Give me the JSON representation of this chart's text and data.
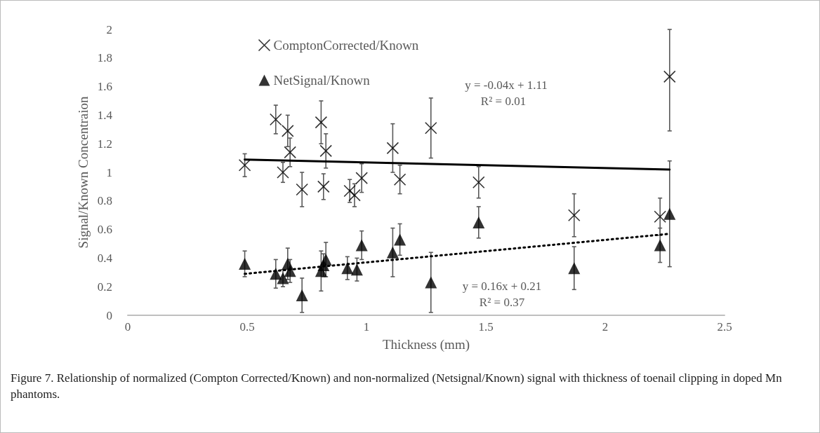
{
  "chart_data": {
    "type": "scatter",
    "xlabel": "Thickness (mm)",
    "ylabel": "Signal/Known Concentraion",
    "xlim": [
      0,
      2.5
    ],
    "xticks": [
      0,
      0.5,
      1,
      1.5,
      2,
      2.5
    ],
    "ylim": [
      0,
      2
    ],
    "yticks": [
      0,
      0.2,
      0.4,
      0.6,
      0.8,
      1,
      1.2,
      1.4,
      1.6,
      1.8,
      2
    ],
    "grid": false,
    "legend": "top left",
    "series": [
      {
        "name": "ComptonCorrected/Known",
        "color": "#000000",
        "marker": "cross",
        "x": [
          0.49,
          0.62,
          0.67,
          0.68,
          0.65,
          0.73,
          0.81,
          0.83,
          0.82,
          0.93,
          0.95,
          0.98,
          1.11,
          1.14,
          1.27,
          1.47,
          1.87,
          2.23,
          2.27
        ],
        "values": [
          1.05,
          1.37,
          1.29,
          1.14,
          1.0,
          0.88,
          1.35,
          1.15,
          0.9,
          0.87,
          0.84,
          0.96,
          1.17,
          0.95,
          1.31,
          0.93,
          0.7,
          0.69,
          1.67
        ],
        "errors": [
          0.08,
          0.1,
          0.11,
          0.1,
          0.07,
          0.12,
          0.15,
          0.12,
          0.09,
          0.08,
          0.08,
          0.1,
          0.17,
          0.1,
          0.21,
          0.11,
          0.15,
          0.13,
          [
            1.29,
            2
          ]
        ]
      },
      {
        "name": "NetSignal/Known",
        "color": "#000000",
        "marker": "triangle",
        "x": [
          0.49,
          0.62,
          0.65,
          0.67,
          0.68,
          0.73,
          0.81,
          0.83,
          0.82,
          0.92,
          0.96,
          0.98,
          1.11,
          1.14,
          1.27,
          1.47,
          1.87,
          2.23,
          2.27
        ],
        "values": [
          0.36,
          0.29,
          0.26,
          0.36,
          0.31,
          0.14,
          0.31,
          0.39,
          0.35,
          0.33,
          0.32,
          0.49,
          0.44,
          0.53,
          0.23,
          0.65,
          0.33,
          0.49,
          0.71
        ],
        "errors": [
          0.09,
          0.1,
          0.06,
          0.11,
          0.08,
          0.12,
          0.14,
          0.12,
          0.08,
          0.08,
          0.08,
          0.1,
          0.17,
          0.11,
          0.21,
          0.11,
          0.15,
          0.12,
          0.37
        ]
      },
      {
        "type": "line",
        "color": "#000000",
        "line_style": "solid",
        "marker": "none",
        "x": [
          0.49,
          2.27
        ],
        "values": [
          1.09,
          1.02
        ]
      },
      {
        "type": "line",
        "color": "#000000",
        "line_style": "dotted",
        "marker": "none",
        "x": [
          0.49,
          2.27
        ],
        "values": [
          0.29,
          0.57
        ]
      }
    ],
    "annotations": [
      "y = -0.04x + 1.11",
      "R² = 0.01",
      "y = 0.16x + 0.21",
      "R² = 0.37",
      "Figure 7.  Relationship of normalized (Compton Corrected/Known) and non-normalized (Netsignal/Known) signal with thickness of toenail clipping in doped Mn phantoms."
    ]
  }
}
